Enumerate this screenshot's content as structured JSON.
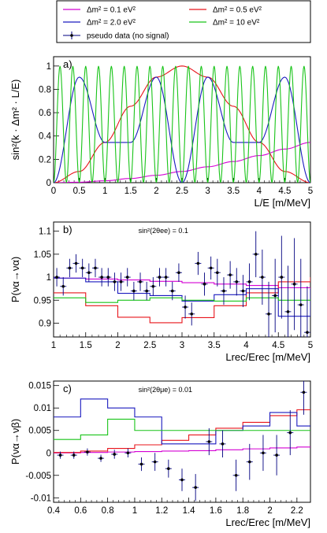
{
  "legend": {
    "entries": [
      {
        "key": "dm01",
        "label": "Δm² = 0.1 eV²",
        "color": "#d400d4",
        "kind": "line"
      },
      {
        "key": "dm05",
        "label": "Δm² = 0.5 eV²",
        "color": "#e8141b",
        "kind": "line"
      },
      {
        "key": "dm20",
        "label": "Δm² = 2.0 eV²",
        "color": "#1a1abf",
        "kind": "line"
      },
      {
        "key": "dm10",
        "label": "Δm² = 10 eV²",
        "color": "#19c419",
        "kind": "line"
      },
      {
        "key": "pseudo",
        "label": "pseudo data (no signal)",
        "color": "#000080",
        "kind": "marker"
      }
    ]
  },
  "chart_data": [
    {
      "panel": "a)",
      "type": "line",
      "xlabel": "L/E [m/MeV]",
      "ylabel": "sin²(k · Δm² · L/E)",
      "xlim": [
        0,
        5
      ],
      "ylim": [
        0,
        1.08
      ],
      "xticks": [
        "0",
        "0.5",
        "1",
        "1.5",
        "2",
        "2.5",
        "3",
        "3.5",
        "4",
        "4.5",
        "5"
      ],
      "yticks": [
        "0",
        "0.2",
        "0.4",
        "0.6",
        "0.8",
        "1"
      ],
      "x": [
        0,
        0.5,
        1.0,
        1.5,
        2.0,
        2.5,
        3.0,
        3.5,
        4.0,
        4.5,
        5.0
      ],
      "series": [
        {
          "key": "dm01",
          "values": [
            0.0,
            0.004,
            0.016,
            0.036,
            0.063,
            0.096,
            0.136,
            0.181,
            0.232,
            0.288,
            0.345
          ]
        },
        {
          "key": "dm05",
          "values": [
            0.0,
            0.096,
            0.345,
            0.655,
            0.905,
            1.0,
            0.905,
            0.655,
            0.345,
            0.096,
            0.0
          ]
        },
        {
          "key": "dm20",
          "values": [
            0.0,
            0.905,
            0.345,
            0.345,
            0.905,
            0.0,
            0.905,
            0.345,
            0.345,
            0.905,
            0.0
          ]
        },
        {
          "key": "dm10",
          "values": [
            0.0,
            0.0,
            0.0,
            0.0,
            0.0,
            0.0,
            0.0,
            0.0,
            0.0,
            0.0,
            0.0
          ]
        }
      ]
    },
    {
      "panel": "b)",
      "type": "line",
      "annotation": "sin²(2θee) = 0.1",
      "xlabel": "Lrec/Erec [m/MeV]",
      "ylabel": "P(να→να)",
      "xlim": [
        1,
        5
      ],
      "ylim": [
        0.87,
        1.12
      ],
      "xticks": [
        "1",
        "1.5",
        "2",
        "2.5",
        "3",
        "3.5",
        "4",
        "4.5",
        "5"
      ],
      "yticks": [
        "0.9",
        "0.95",
        "1",
        "1.05",
        "1.1"
      ],
      "x": [
        1.0,
        1.5,
        2.0,
        2.5,
        3.0,
        3.5,
        4.0,
        4.5,
        5.0
      ],
      "series": [
        {
          "key": "dm01",
          "values": [
            0.998,
            0.996,
            0.994,
            0.991,
            0.988,
            0.985,
            0.982,
            0.977,
            0.972
          ]
        },
        {
          "key": "dm05",
          "values": [
            0.966,
            0.938,
            0.913,
            0.901,
            0.912,
            0.938,
            0.966,
            0.99,
            1.0
          ]
        },
        {
          "key": "dm20",
          "values": [
            0.998,
            0.99,
            0.965,
            0.96,
            0.948,
            0.962,
            0.975,
            0.915,
            0.975
          ]
        },
        {
          "key": "dm10",
          "values": [
            0.955,
            0.945,
            0.95,
            0.955,
            0.95,
            0.948,
            0.955,
            0.95,
            0.952
          ]
        }
      ],
      "pseudo_data": {
        "x": [
          1.05,
          1.15,
          1.25,
          1.35,
          1.45,
          1.55,
          1.65,
          1.75,
          1.85,
          1.95,
          2.05,
          2.15,
          2.25,
          2.35,
          2.45,
          2.55,
          2.65,
          2.75,
          2.85,
          2.95,
          3.05,
          3.15,
          3.25,
          3.35,
          3.45,
          3.55,
          3.65,
          3.75,
          3.85,
          3.95,
          4.05,
          4.15,
          4.25,
          4.35,
          4.45,
          4.55,
          4.65,
          4.75,
          4.85,
          4.95
        ],
        "y": [
          1.0,
          0.98,
          1.02,
          1.03,
          1.02,
          1.01,
          1.02,
          1.0,
          1.0,
          0.99,
          0.99,
          1.0,
          0.97,
          0.99,
          0.97,
          0.98,
          1.0,
          1.0,
          0.97,
          1.01,
          0.935,
          0.92,
          1.03,
          0.985,
          1.02,
          1.01,
          0.97,
          1.005,
          0.99,
          0.97,
          0.99,
          1.05,
          1.0,
          0.92,
          0.96,
          1.0,
          0.925,
          0.985,
          0.94,
          0.88
        ],
        "err": [
          0.02,
          0.02,
          0.02,
          0.02,
          0.02,
          0.02,
          0.02,
          0.02,
          0.02,
          0.02,
          0.02,
          0.02,
          0.02,
          0.02,
          0.02,
          0.02,
          0.02,
          0.02,
          0.02,
          0.02,
          0.025,
          0.025,
          0.025,
          0.025,
          0.025,
          0.03,
          0.03,
          0.03,
          0.03,
          0.035,
          0.04,
          0.05,
          0.06,
          0.07,
          0.08,
          0.09,
          0.1,
          0.1,
          0.1,
          0.1
        ]
      }
    },
    {
      "panel": "c)",
      "type": "line",
      "annotation": "sin²(2θμe) = 0.01",
      "xlabel": "Lrec/Erec [m/MeV]",
      "ylabel": "P(να→νβ)",
      "xlim": [
        0.4,
        2.3
      ],
      "ylim": [
        -0.011,
        0.016
      ],
      "xticks": [
        "0.4",
        "0.6",
        "0.8",
        "1",
        "1.2",
        "1.4",
        "1.6",
        "1.8",
        "2",
        "2.2"
      ],
      "yticks": [
        "-0.01",
        "-0.005",
        "0",
        "0.005",
        "0.01",
        "0.015"
      ],
      "x": [
        0.4,
        0.6,
        0.8,
        1.0,
        1.2,
        1.4,
        1.6,
        1.8,
        2.0,
        2.2
      ],
      "series": [
        {
          "key": "dm01",
          "values": [
            0.0,
            0.0001,
            0.0002,
            0.0003,
            0.0004,
            0.0005,
            0.0007,
            0.0009,
            0.0011,
            0.0013
          ]
        },
        {
          "key": "dm05",
          "values": [
            0.0001,
            0.0004,
            0.001,
            0.0018,
            0.0028,
            0.004,
            0.0055,
            0.0068,
            0.0083,
            0.0096
          ]
        },
        {
          "key": "dm20",
          "values": [
            0.008,
            0.012,
            0.01,
            0.008,
            0.002,
            0.002,
            0.005,
            0.006,
            0.009,
            0.006
          ]
        },
        {
          "key": "dm10",
          "values": [
            0.003,
            0.004,
            0.0075,
            0.005,
            0.005,
            0.005,
            0.005,
            0.005,
            0.005,
            0.005
          ]
        }
      ],
      "pseudo_data": {
        "x": [
          0.45,
          0.55,
          0.65,
          0.75,
          0.85,
          0.95,
          1.05,
          1.15,
          1.25,
          1.35,
          1.45,
          1.55,
          1.65,
          1.75,
          1.85,
          1.95,
          2.05,
          2.15,
          2.25
        ],
        "y": [
          -0.0005,
          -0.0005,
          0.0002,
          -0.0012,
          -0.0003,
          0.0,
          -0.0025,
          -0.002,
          -0.0035,
          -0.006,
          -0.0077,
          0.0025,
          0.002,
          -0.005,
          -0.002,
          0.0,
          -0.0005,
          0.0045,
          0.0135
        ],
        "err": [
          0.0008,
          0.0008,
          0.0008,
          0.0008,
          0.001,
          0.001,
          0.0015,
          0.002,
          0.002,
          0.0025,
          0.003,
          0.003,
          0.003,
          0.0035,
          0.004,
          0.004,
          0.0045,
          0.005,
          0.005
        ]
      }
    }
  ]
}
